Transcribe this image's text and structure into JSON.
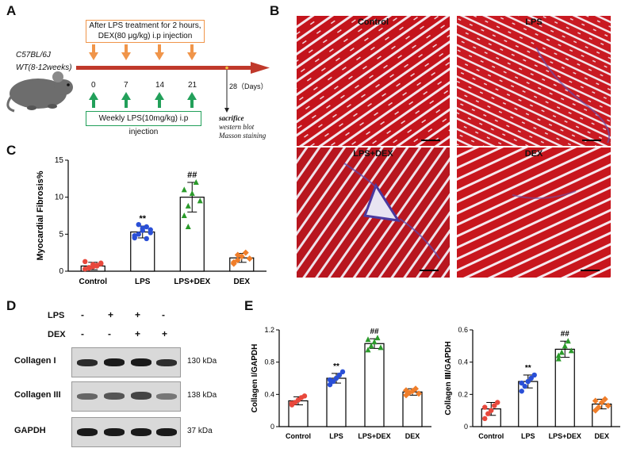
{
  "panel_letters": {
    "a": "A",
    "b": "B",
    "c": "C",
    "d": "D",
    "e": "E"
  },
  "panel_a": {
    "mouse_strain": "C57BL/6J",
    "mouse_type": "WT(8-12weeks)",
    "top_box_line1": "After LPS treatment for 2 hours,",
    "top_box_line2": "DEX(80 μg/kg) i.p injection",
    "bottom_box": "Weekly LPS(10mg/kg) i.p injection",
    "timepoints": [
      "0",
      "7",
      "14",
      "21"
    ],
    "final_day": "28（Days）",
    "sacrifice": "sacrifice",
    "western": "western blot",
    "masson": "Masson staining"
  },
  "panel_b": {
    "labels": [
      "Control",
      "LPS",
      "LPS+DEX",
      "DEX"
    ]
  },
  "panel_d": {
    "lps_label": "LPS",
    "dex_label": "DEX",
    "lps_signs": [
      "-",
      "+",
      "+",
      "-"
    ],
    "dex_signs": [
      "-",
      "-",
      "+",
      "+"
    ],
    "rows": [
      {
        "name": "Collagen I",
        "kda": "130 kDa"
      },
      {
        "name": "Collagen III",
        "kda": "138 kDa"
      },
      {
        "name": "GAPDH",
        "kda": "37 kDa"
      }
    ]
  },
  "chart_data": [
    {
      "type": "bar",
      "panel": "C",
      "ylabel": "Myocardial Fibrosis%",
      "categories": [
        "Control",
        "LPS",
        "LPS+DEX",
        "DEX"
      ],
      "values": [
        0.7,
        5.3,
        10.0,
        1.8
      ],
      "sd": [
        0.5,
        0.8,
        2.0,
        0.6
      ],
      "ylim": [
        0,
        15
      ],
      "yticks": [
        0,
        5,
        10,
        15
      ],
      "annotations": [
        "",
        "**",
        "##",
        ""
      ],
      "colors": [
        "#e8483c",
        "#2a4fd6",
        "#2a9a2a",
        "#f07e2a"
      ],
      "points": [
        [
          0.3,
          0.5,
          0.6,
          0.8,
          1.0,
          1.3,
          0.4,
          0.9,
          0.7,
          1.1
        ],
        [
          4.5,
          5.0,
          5.5,
          6.0,
          5.2,
          4.8,
          6.3,
          5.8,
          4.4,
          5.6
        ],
        [
          7.5,
          8.8,
          10.5,
          12.0,
          9.5,
          11.0,
          6.0
        ],
        [
          1.0,
          1.5,
          2.0,
          2.5,
          1.7,
          1.2,
          2.2
        ]
      ]
    },
    {
      "type": "bar",
      "panel": "E-left",
      "ylabel": "Collagen I/GAPDH",
      "categories": [
        "Control",
        "LPS",
        "LPS+DEX",
        "DEX"
      ],
      "values": [
        0.32,
        0.6,
        1.03,
        0.43
      ],
      "sd": [
        0.05,
        0.06,
        0.06,
        0.04
      ],
      "ylim": [
        0,
        1.2
      ],
      "yticks": [
        0,
        0.4,
        0.8,
        1.2
      ],
      "annotations": [
        "",
        "**",
        "##",
        ""
      ],
      "colors": [
        "#e8483c",
        "#2a4fd6",
        "#2a9a2a",
        "#f07e2a"
      ],
      "points": [
        [
          0.27,
          0.3,
          0.33,
          0.36,
          0.38,
          0.29
        ],
        [
          0.52,
          0.56,
          0.6,
          0.64,
          0.68,
          0.58
        ],
        [
          0.95,
          1.0,
          1.05,
          1.1,
          0.98,
          1.08
        ],
        [
          0.39,
          0.42,
          0.44,
          0.47,
          0.41,
          0.45
        ]
      ]
    },
    {
      "type": "bar",
      "panel": "E-right",
      "ylabel": "Collagen Ⅲ/GAPDH",
      "categories": [
        "Control",
        "LPS",
        "LPS+DEX",
        "DEX"
      ],
      "values": [
        0.11,
        0.28,
        0.48,
        0.14
      ],
      "sd": [
        0.04,
        0.04,
        0.05,
        0.03
      ],
      "ylim": [
        0,
        0.6
      ],
      "yticks": [
        0,
        0.2,
        0.4,
        0.6
      ],
      "annotations": [
        "",
        "**",
        "##",
        ""
      ],
      "colors": [
        "#e8483c",
        "#2a4fd6",
        "#2a9a2a",
        "#f07e2a"
      ],
      "points": [
        [
          0.05,
          0.08,
          0.1,
          0.13,
          0.15,
          0.12
        ],
        [
          0.22,
          0.25,
          0.28,
          0.3,
          0.32,
          0.27
        ],
        [
          0.42,
          0.46,
          0.5,
          0.53,
          0.47,
          0.44
        ],
        [
          0.1,
          0.12,
          0.15,
          0.17,
          0.13,
          0.16
        ]
      ]
    }
  ]
}
